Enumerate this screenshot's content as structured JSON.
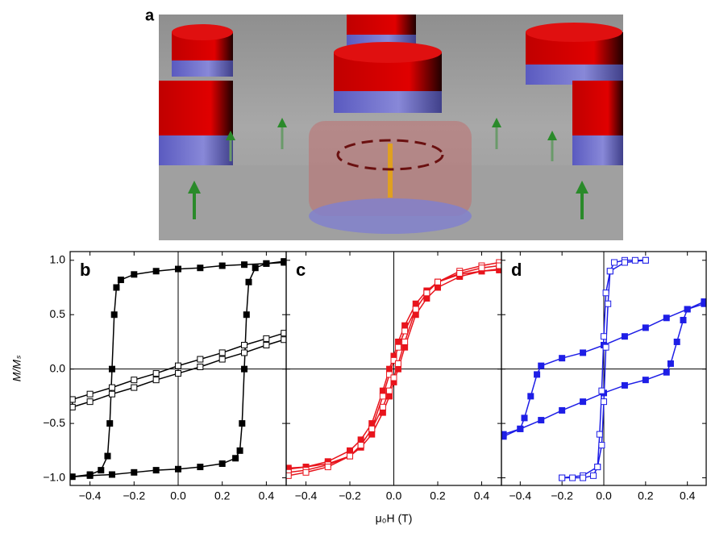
{
  "panel_a": {
    "label": "a"
  },
  "chart_data": [
    {
      "type": "line",
      "label": "b",
      "ylabel": "M/Mₛ",
      "xlim": [
        -0.49,
        0.49
      ],
      "xticks": [
        {
          "value": -0.4,
          "label": "−0.4"
        },
        {
          "value": -0.2,
          "label": "−0.2"
        },
        {
          "value": 0,
          "label": "0.0"
        },
        {
          "value": 0.2,
          "label": "0.2"
        },
        {
          "value": 0.4,
          "label": "0.4"
        }
      ],
      "ylim": [
        -1.07,
        1.08
      ],
      "yticks": [
        {
          "value": -1,
          "label": "−1.0"
        },
        {
          "value": -0.5,
          "label": "−0.5"
        },
        {
          "value": 0,
          "label": "0.0"
        },
        {
          "value": 0.5,
          "label": "0.5"
        },
        {
          "value": 1,
          "label": "1.0"
        }
      ],
      "series": [
        {
          "marker": "filled",
          "color": "#000000",
          "x": [
            0.48,
            0.4,
            0.3,
            0.2,
            0.1,
            0,
            -0.1,
            -0.2,
            -0.26,
            -0.28,
            -0.29,
            -0.3,
            -0.31,
            -0.32,
            -0.35,
            -0.4,
            -0.48,
            -0.4,
            -0.3,
            -0.2,
            -0.1,
            0,
            0.1,
            0.2,
            0.26,
            0.28,
            0.29,
            0.3,
            0.31,
            0.32,
            0.35,
            0.4,
            0.48
          ],
          "values": [
            0.98,
            0.97,
            0.96,
            0.95,
            0.93,
            0.92,
            0.9,
            0.87,
            0.82,
            0.75,
            0.5,
            0,
            -0.5,
            -0.8,
            -0.93,
            -0.97,
            -0.99,
            -0.98,
            -0.97,
            -0.95,
            -0.93,
            -0.92,
            -0.9,
            -0.87,
            -0.82,
            -0.75,
            -0.5,
            0,
            0.5,
            0.8,
            0.93,
            0.97,
            0.99
          ]
        },
        {
          "marker": "open",
          "color": "#000000",
          "x": [
            0.48,
            0.4,
            0.3,
            0.2,
            0.1,
            0,
            -0.1,
            -0.2,
            -0.3,
            -0.4,
            -0.48,
            -0.48,
            -0.4,
            -0.3,
            -0.2,
            -0.1,
            0,
            0.1,
            0.2,
            0.3,
            0.4,
            0.48
          ],
          "values": [
            0.33,
            0.28,
            0.22,
            0.15,
            0.09,
            0.03,
            -0.04,
            -0.1,
            -0.17,
            -0.23,
            -0.28,
            -0.35,
            -0.3,
            -0.23,
            -0.17,
            -0.1,
            -0.04,
            0.02,
            0.09,
            0.15,
            0.22,
            0.27
          ]
        }
      ]
    },
    {
      "type": "line",
      "label": "c",
      "xlabel": "μ₀H (T)",
      "xlim": [
        -0.49,
        0.49
      ],
      "xticks": [
        {
          "value": -0.4,
          "label": "−0.4"
        },
        {
          "value": -0.2,
          "label": "−0.2"
        },
        {
          "value": 0,
          "label": "0.0"
        },
        {
          "value": 0.2,
          "label": "0.2"
        },
        {
          "value": 0.4,
          "label": "0.4"
        }
      ],
      "ylim": [
        -1.07,
        1.08
      ],
      "yticks": [
        -1,
        -0.5,
        0,
        0.5,
        1
      ],
      "series": [
        {
          "marker": "filled",
          "color": "#e8141c",
          "x": [
            0.48,
            0.4,
            0.3,
            0.2,
            0.15,
            0.1,
            0.05,
            0.02,
            0,
            -0.02,
            -0.05,
            -0.1,
            -0.15,
            -0.2,
            -0.3,
            -0.4,
            -0.48,
            -0.48,
            -0.4,
            -0.3,
            -0.2,
            -0.15,
            -0.1,
            -0.05,
            -0.02,
            0,
            0.02,
            0.05,
            0.1,
            0.15,
            0.2,
            0.3,
            0.4,
            0.48
          ],
          "values": [
            0.92,
            0.9,
            0.87,
            0.8,
            0.72,
            0.6,
            0.4,
            0.25,
            0.12,
            0,
            -0.2,
            -0.5,
            -0.65,
            -0.75,
            -0.85,
            -0.9,
            -0.91,
            -0.92,
            -0.9,
            -0.87,
            -0.8,
            -0.72,
            -0.6,
            -0.4,
            -0.25,
            -0.12,
            0,
            0.2,
            0.5,
            0.65,
            0.75,
            0.85,
            0.9,
            0.91
          ]
        },
        {
          "marker": "open",
          "color": "#e8141c",
          "x": [
            0.48,
            0.4,
            0.3,
            0.2,
            0.15,
            0.1,
            0.05,
            0.02,
            0,
            -0.02,
            -0.05,
            -0.1,
            -0.15,
            -0.2,
            -0.3,
            -0.4,
            -0.48,
            -0.48,
            -0.4,
            -0.3,
            -0.2,
            -0.15,
            -0.1,
            -0.05,
            -0.02,
            0,
            0.02,
            0.05,
            0.1,
            0.15,
            0.2,
            0.3,
            0.4,
            0.48
          ],
          "values": [
            0.98,
            0.95,
            0.9,
            0.8,
            0.7,
            0.55,
            0.35,
            0.2,
            0.08,
            -0.05,
            -0.25,
            -0.55,
            -0.7,
            -0.8,
            -0.88,
            -0.93,
            -0.95,
            -0.98,
            -0.95,
            -0.9,
            -0.8,
            -0.7,
            -0.55,
            -0.35,
            -0.2,
            -0.08,
            0.05,
            0.25,
            0.55,
            0.7,
            0.8,
            0.88,
            0.93,
            0.95
          ]
        }
      ]
    },
    {
      "type": "line",
      "label": "d",
      "xlim": [
        -0.49,
        0.49
      ],
      "xticks": [
        {
          "value": -0.4,
          "label": "−0.4"
        },
        {
          "value": -0.2,
          "label": "−0.2"
        },
        {
          "value": 0,
          "label": "0.0"
        },
        {
          "value": 0.2,
          "label": "0.2"
        },
        {
          "value": 0.4,
          "label": "0.4"
        }
      ],
      "ylim": [
        -1.07,
        1.08
      ],
      "yticks": [
        -1,
        -0.5,
        0,
        0.5,
        1
      ],
      "series": [
        {
          "marker": "filled",
          "color": "#1e1ee6",
          "x": [
            0.48,
            0.4,
            0.3,
            0.2,
            0.1,
            0,
            -0.1,
            -0.2,
            -0.3,
            -0.32,
            -0.35,
            -0.38,
            -0.4,
            -0.48,
            -0.48,
            -0.4,
            -0.3,
            -0.2,
            -0.1,
            0,
            0.1,
            0.2,
            0.3,
            0.32,
            0.35,
            0.38,
            0.4,
            0.48
          ],
          "values": [
            0.6,
            0.55,
            0.47,
            0.38,
            0.3,
            0.22,
            0.15,
            0.1,
            0.03,
            -0.05,
            -0.25,
            -0.45,
            -0.55,
            -0.62,
            -0.6,
            -0.55,
            -0.47,
            -0.38,
            -0.3,
            -0.22,
            -0.15,
            -0.1,
            -0.03,
            0.05,
            0.25,
            0.45,
            0.55,
            0.62
          ]
        },
        {
          "marker": "open",
          "color": "#1e1ee6",
          "x": [
            0.2,
            0.15,
            0.1,
            0.05,
            0.03,
            0.02,
            0.01,
            0,
            -0.01,
            -0.03,
            -0.1,
            -0.2,
            -0.2,
            -0.15,
            -0.1,
            -0.05,
            -0.03,
            -0.02,
            -0.01,
            0,
            0.01,
            0.03,
            0.1,
            0.2
          ],
          "values": [
            1,
            1,
            1,
            0.98,
            0.9,
            0.6,
            0.2,
            -0.3,
            -0.7,
            -0.9,
            -0.98,
            -1,
            -1,
            -1,
            -1,
            -0.98,
            -0.9,
            -0.6,
            -0.2,
            0.3,
            0.7,
            0.9,
            0.98,
            1
          ]
        }
      ]
    }
  ]
}
